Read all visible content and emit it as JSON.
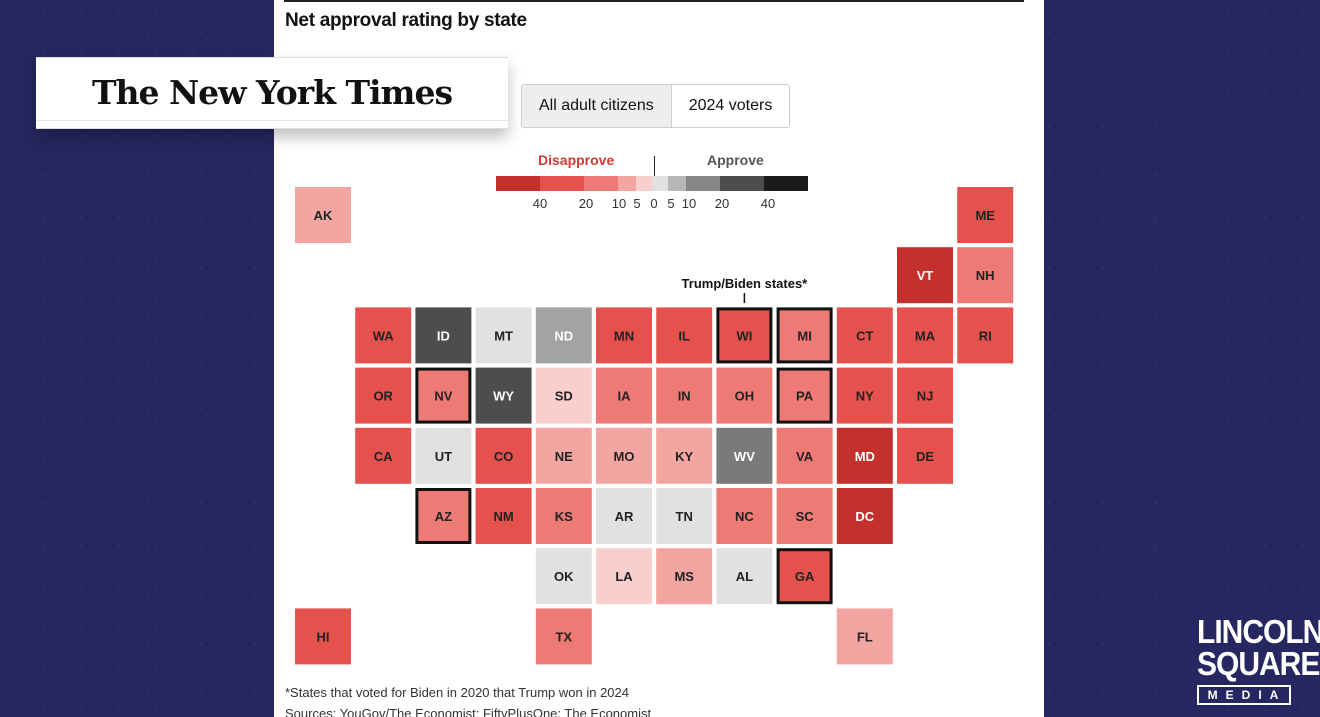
{
  "header": {
    "title": "Net approval rating by state"
  },
  "toggle": {
    "options": [
      "All adult citizens",
      "2024 voters"
    ],
    "active": 0
  },
  "legend": {
    "disapprove_label": "Disapprove",
    "approve_label": "Approve",
    "ticks": [
      "40",
      "20",
      "10",
      "5",
      "0",
      "5",
      "10",
      "20",
      "40"
    ],
    "colors": [
      "#c4302b",
      "#e5514d",
      "#ed7a75",
      "#f3a5a1",
      "#f8cfcc",
      "#e1e1e1",
      "#b7b7b7",
      "#868686",
      "#4d4d4d",
      "#1b1b1b"
    ]
  },
  "chart_data": {
    "type": "heatmap",
    "title": "Net approval rating by state",
    "subtitle": "Trump/Biden states*",
    "tiles": [
      {
        "state": "AK",
        "row": 0,
        "col": 0,
        "color": "#f3a5a1",
        "swing": false
      },
      {
        "state": "ME",
        "row": 0,
        "col": 11,
        "color": "#e5514d",
        "swing": false
      },
      {
        "state": "VT",
        "row": 1,
        "col": 10,
        "color": "#c4302b",
        "swing": false
      },
      {
        "state": "NH",
        "row": 1,
        "col": 11,
        "color": "#ed7a75",
        "swing": false
      },
      {
        "state": "WA",
        "row": 2,
        "col": 1,
        "color": "#e5514d",
        "swing": false
      },
      {
        "state": "ID",
        "row": 2,
        "col": 2,
        "color": "#4d4d4d",
        "swing": false
      },
      {
        "state": "MT",
        "row": 2,
        "col": 3,
        "color": "#e1e1e1",
        "swing": false
      },
      {
        "state": "ND",
        "row": 2,
        "col": 4,
        "color": "#a3a3a3",
        "swing": false
      },
      {
        "state": "MN",
        "row": 2,
        "col": 5,
        "color": "#e5514d",
        "swing": false
      },
      {
        "state": "IL",
        "row": 2,
        "col": 6,
        "color": "#e5514d",
        "swing": false
      },
      {
        "state": "WI",
        "row": 2,
        "col": 7,
        "color": "#e5514d",
        "swing": true
      },
      {
        "state": "MI",
        "row": 2,
        "col": 8,
        "color": "#ed7a75",
        "swing": true
      },
      {
        "state": "CT",
        "row": 2,
        "col": 9,
        "color": "#e5514d",
        "swing": false
      },
      {
        "state": "MA",
        "row": 2,
        "col": 10,
        "color": "#e5514d",
        "swing": false
      },
      {
        "state": "RI",
        "row": 2,
        "col": 11,
        "color": "#e5514d",
        "swing": false
      },
      {
        "state": "OR",
        "row": 3,
        "col": 1,
        "color": "#e5514d",
        "swing": false
      },
      {
        "state": "NV",
        "row": 3,
        "col": 2,
        "color": "#ed7a75",
        "swing": true
      },
      {
        "state": "WY",
        "row": 3,
        "col": 3,
        "color": "#4d4d4d",
        "swing": false
      },
      {
        "state": "SD",
        "row": 3,
        "col": 4,
        "color": "#f8cfcc",
        "swing": false
      },
      {
        "state": "IA",
        "row": 3,
        "col": 5,
        "color": "#ed7a75",
        "swing": false
      },
      {
        "state": "IN",
        "row": 3,
        "col": 6,
        "color": "#ed7a75",
        "swing": false
      },
      {
        "state": "OH",
        "row": 3,
        "col": 7,
        "color": "#ed7a75",
        "swing": false
      },
      {
        "state": "PA",
        "row": 3,
        "col": 8,
        "color": "#ed7a75",
        "swing": true
      },
      {
        "state": "NY",
        "row": 3,
        "col": 9,
        "color": "#e5514d",
        "swing": false
      },
      {
        "state": "NJ",
        "row": 3,
        "col": 10,
        "color": "#e5514d",
        "swing": false
      },
      {
        "state": "CA",
        "row": 4,
        "col": 1,
        "color": "#e5514d",
        "swing": false
      },
      {
        "state": "UT",
        "row": 4,
        "col": 2,
        "color": "#e1e1e1",
        "swing": false
      },
      {
        "state": "CO",
        "row": 4,
        "col": 3,
        "color": "#e5514d",
        "swing": false
      },
      {
        "state": "NE",
        "row": 4,
        "col": 4,
        "color": "#f3a5a1",
        "swing": false
      },
      {
        "state": "MO",
        "row": 4,
        "col": 5,
        "color": "#f3a5a1",
        "swing": false
      },
      {
        "state": "KY",
        "row": 4,
        "col": 6,
        "color": "#f3a5a1",
        "swing": false
      },
      {
        "state": "WV",
        "row": 4,
        "col": 7,
        "color": "#7a7a7a",
        "swing": false
      },
      {
        "state": "VA",
        "row": 4,
        "col": 8,
        "color": "#ed7a75",
        "swing": false
      },
      {
        "state": "MD",
        "row": 4,
        "col": 9,
        "color": "#c4302b",
        "swing": false
      },
      {
        "state": "DE",
        "row": 4,
        "col": 10,
        "color": "#e5514d",
        "swing": false
      },
      {
        "state": "AZ",
        "row": 5,
        "col": 2,
        "color": "#ed7a75",
        "swing": true
      },
      {
        "state": "NM",
        "row": 5,
        "col": 3,
        "color": "#e5514d",
        "swing": false
      },
      {
        "state": "KS",
        "row": 5,
        "col": 4,
        "color": "#ed7a75",
        "swing": false
      },
      {
        "state": "AR",
        "row": 5,
        "col": 5,
        "color": "#e1e1e1",
        "swing": false
      },
      {
        "state": "TN",
        "row": 5,
        "col": 6,
        "color": "#e1e1e1",
        "swing": false
      },
      {
        "state": "NC",
        "row": 5,
        "col": 7,
        "color": "#ed7a75",
        "swing": false
      },
      {
        "state": "SC",
        "row": 5,
        "col": 8,
        "color": "#ed7a75",
        "swing": false
      },
      {
        "state": "DC",
        "row": 5,
        "col": 9,
        "color": "#c4302b",
        "swing": false
      },
      {
        "state": "OK",
        "row": 6,
        "col": 4,
        "color": "#e1e1e1",
        "swing": false
      },
      {
        "state": "LA",
        "row": 6,
        "col": 5,
        "color": "#f8cfcc",
        "swing": false
      },
      {
        "state": "MS",
        "row": 6,
        "col": 6,
        "color": "#f3a5a1",
        "swing": false
      },
      {
        "state": "AL",
        "row": 6,
        "col": 7,
        "color": "#e1e1e1",
        "swing": false
      },
      {
        "state": "GA",
        "row": 6,
        "col": 8,
        "color": "#e5514d",
        "swing": true
      },
      {
        "state": "HI",
        "row": 7,
        "col": 0,
        "color": "#e5514d",
        "swing": false
      },
      {
        "state": "TX",
        "row": 7,
        "col": 4,
        "color": "#ed7a75",
        "swing": false
      },
      {
        "state": "FL",
        "row": 7,
        "col": 9,
        "color": "#f3a5a1",
        "swing": false
      }
    ]
  },
  "annotation": {
    "label": "Trump/Biden states*"
  },
  "footer": {
    "footnote": "*States that voted for Biden in 2020 that Trump won in 2024",
    "sources": "Sources: YouGov/The Economist; FiftyPlusOne; The Economist"
  },
  "nyt": {
    "logo_text": "The New York Times"
  },
  "brand": {
    "line1": "LINCOLN",
    "line2": "SQUARE",
    "line3": "MEDIA"
  }
}
